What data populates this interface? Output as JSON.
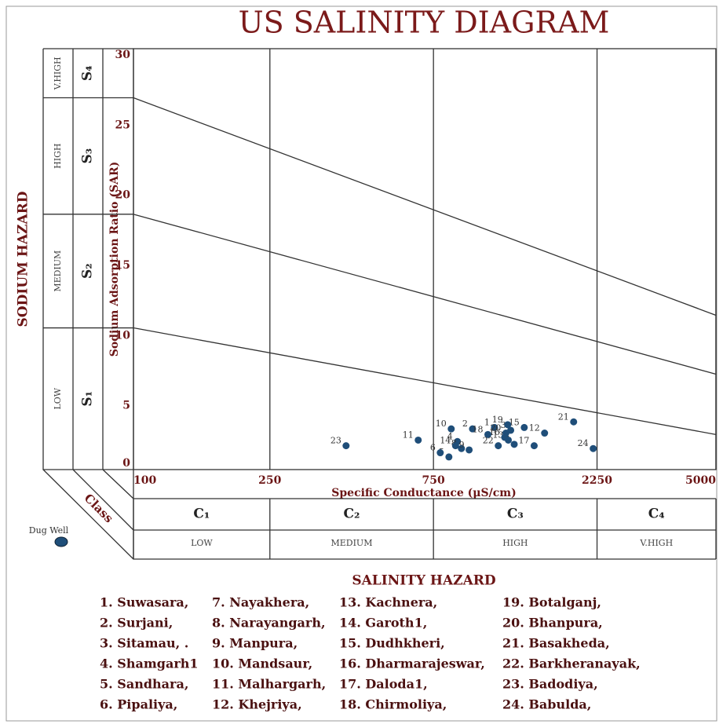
{
  "chart_data": {
    "type": "scatter",
    "title": "US SALINITY DIAGRAM",
    "x_label": "Specific Conductance (μS/cm)",
    "y_label": "Sodium Adsorption Ratio (SAR)",
    "y_hazard_label": "SODIUM HAZARD",
    "x_hazard_label": "SALINITY HAZARD",
    "class_label": "Class",
    "xscale": "log",
    "xlim": [
      100,
      5000
    ],
    "xticks": [
      100,
      250,
      750,
      2250,
      5000
    ],
    "ylim": [
      0,
      30
    ],
    "yticks": [
      0,
      5,
      10,
      15,
      20,
      25,
      30
    ],
    "grid": "x",
    "salinity_classes": [
      "C₁",
      "C₂",
      "C₃",
      "C₄"
    ],
    "salinity_levels": [
      "LOW",
      "MEDIUM",
      "HIGH",
      "V.HIGH"
    ],
    "sodium_classes": [
      "S₁",
      "S₂",
      "S₃",
      "S₄"
    ],
    "sodium_levels": [
      "LOW",
      "MEDIUM",
      "HIGH",
      "V.HIGH"
    ],
    "boundaries": [
      {
        "x": [
          100,
          5000
        ],
        "y": [
          10.1,
          2.5
        ]
      },
      {
        "x": [
          100,
          5000
        ],
        "y": [
          18.2,
          6.8
        ]
      },
      {
        "x": [
          100,
          5000
        ],
        "y": [
          26.5,
          11
        ]
      }
    ],
    "series": [
      {
        "name": "Dug Well",
        "color": "#1f4e79",
        "labels": [
          1,
          2,
          3,
          4,
          5,
          6,
          7,
          8,
          9,
          10,
          11,
          12,
          13,
          14,
          15,
          16,
          17,
          18,
          19,
          20,
          21,
          22,
          23,
          24
        ],
        "x": [
          1130,
          975,
          1260,
          881,
          832,
          785,
          1290,
          905,
          953,
          845,
          677,
          1582,
          1240,
          870,
          1380,
          1210,
          1475,
          1081,
          1235,
          1220,
          1923,
          1159,
          417,
          2193
        ],
        "values": [
          3.0,
          2.9,
          2.8,
          2.0,
          0.9,
          1.2,
          1.8,
          1.5,
          1.4,
          2.9,
          2.1,
          2.6,
          2.1,
          1.7,
          3.0,
          2.3,
          1.7,
          2.5,
          3.2,
          2.6,
          3.4,
          1.7,
          1.7,
          1.5
        ]
      }
    ],
    "stations": [
      "1. Suwasara,",
      "2. Surjani,",
      "3. Sitamau, .",
      "4. Shamgarh1",
      "5. Sandhara,",
      "6. Pipaliya,",
      "7. Nayakhera,",
      "8. Narayangarh,",
      "9. Manpura,",
      "10. Mandsaur,",
      "11. Malhargarh,",
      "12. Khejriya,",
      "13. Kachnera,",
      "14. Garoth1,",
      "15. Dudhkheri,",
      "16. Dharmarajeswar,",
      "17. Daloda1,",
      "18. Chirmoliya,",
      "19. Botalganj,",
      "20. Bhanpura,",
      "21. Basakheda,",
      "22. Barkheranayak,",
      "23. Badodiya,",
      "24. Babulda,"
    ]
  }
}
